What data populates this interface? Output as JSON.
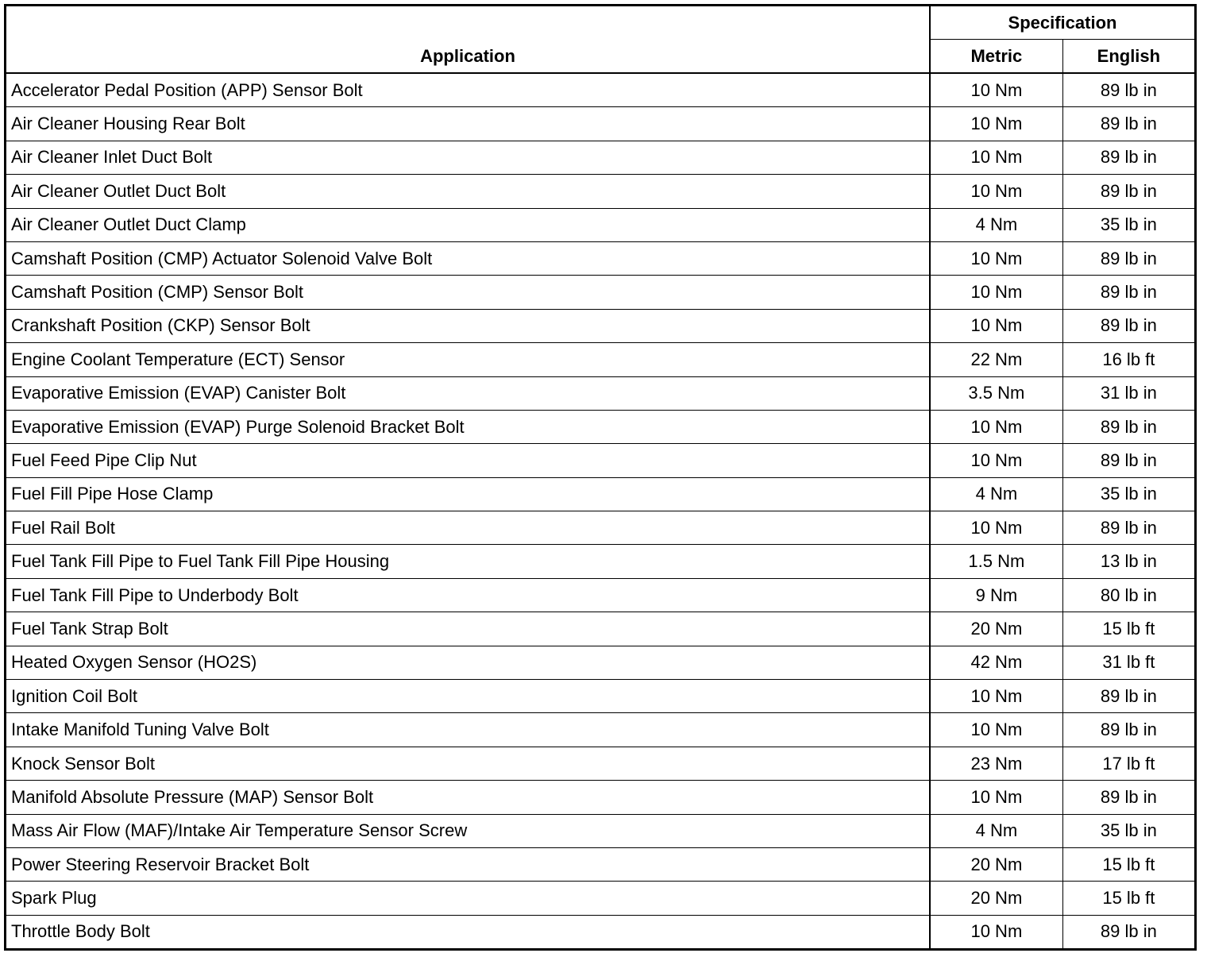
{
  "headers": {
    "application": "Application",
    "specification": "Specification",
    "metric": "Metric",
    "english": "English"
  },
  "rows": [
    [
      "Accelerator Pedal Position (APP) Sensor Bolt",
      "10 Nm",
      "89 lb in"
    ],
    [
      "Air Cleaner Housing Rear Bolt",
      "10 Nm",
      "89 lb in"
    ],
    [
      "Air Cleaner Inlet Duct Bolt",
      "10 Nm",
      "89 lb in"
    ],
    [
      "Air Cleaner Outlet Duct Bolt",
      "10 Nm",
      "89 lb in"
    ],
    [
      "Air Cleaner Outlet Duct Clamp",
      "4 Nm",
      "35 lb in"
    ],
    [
      "Camshaft Position (CMP) Actuator Solenoid Valve Bolt",
      "10 Nm",
      "89 lb in"
    ],
    [
      "Camshaft Position (CMP) Sensor Bolt",
      "10 Nm",
      "89 lb in"
    ],
    [
      "Crankshaft Position (CKP) Sensor Bolt",
      "10 Nm",
      "89 lb in"
    ],
    [
      "Engine Coolant Temperature (ECT) Sensor",
      "22 Nm",
      "16 lb ft"
    ],
    [
      "Evaporative Emission (EVAP) Canister Bolt",
      "3.5 Nm",
      "31 lb in"
    ],
    [
      "Evaporative Emission (EVAP) Purge Solenoid Bracket Bolt",
      "10 Nm",
      "89 lb in"
    ],
    [
      "Fuel Feed Pipe Clip Nut",
      "10 Nm",
      "89 lb in"
    ],
    [
      "Fuel Fill Pipe Hose Clamp",
      "4 Nm",
      "35 lb in"
    ],
    [
      "Fuel Rail Bolt",
      "10 Nm",
      "89 lb in"
    ],
    [
      "Fuel Tank Fill Pipe to Fuel Tank Fill Pipe Housing",
      "1.5 Nm",
      "13 lb in"
    ],
    [
      "Fuel Tank Fill Pipe to Underbody Bolt",
      "9 Nm",
      "80 lb in"
    ],
    [
      "Fuel Tank Strap Bolt",
      "20 Nm",
      "15 lb ft"
    ],
    [
      "Heated Oxygen Sensor (HO2S)",
      "42 Nm",
      "31 lb ft"
    ],
    [
      "Ignition Coil Bolt",
      "10 Nm",
      "89 lb in"
    ],
    [
      "Intake Manifold Tuning Valve Bolt",
      "10 Nm",
      "89 lb in"
    ],
    [
      "Knock Sensor Bolt",
      "23 Nm",
      "17 lb ft"
    ],
    [
      "Manifold Absolute Pressure (MAP) Sensor Bolt",
      "10 Nm",
      "89 lb in"
    ],
    [
      "Mass Air Flow (MAF)/Intake Air Temperature Sensor Screw",
      "4 Nm",
      "35 lb in"
    ],
    [
      "Power Steering Reservoir Bracket Bolt",
      "20 Nm",
      "15 lb ft"
    ],
    [
      "Spark Plug",
      "20 Nm",
      "15 lb ft"
    ],
    [
      "Throttle Body Bolt",
      "10 Nm",
      "89 lb in"
    ]
  ]
}
